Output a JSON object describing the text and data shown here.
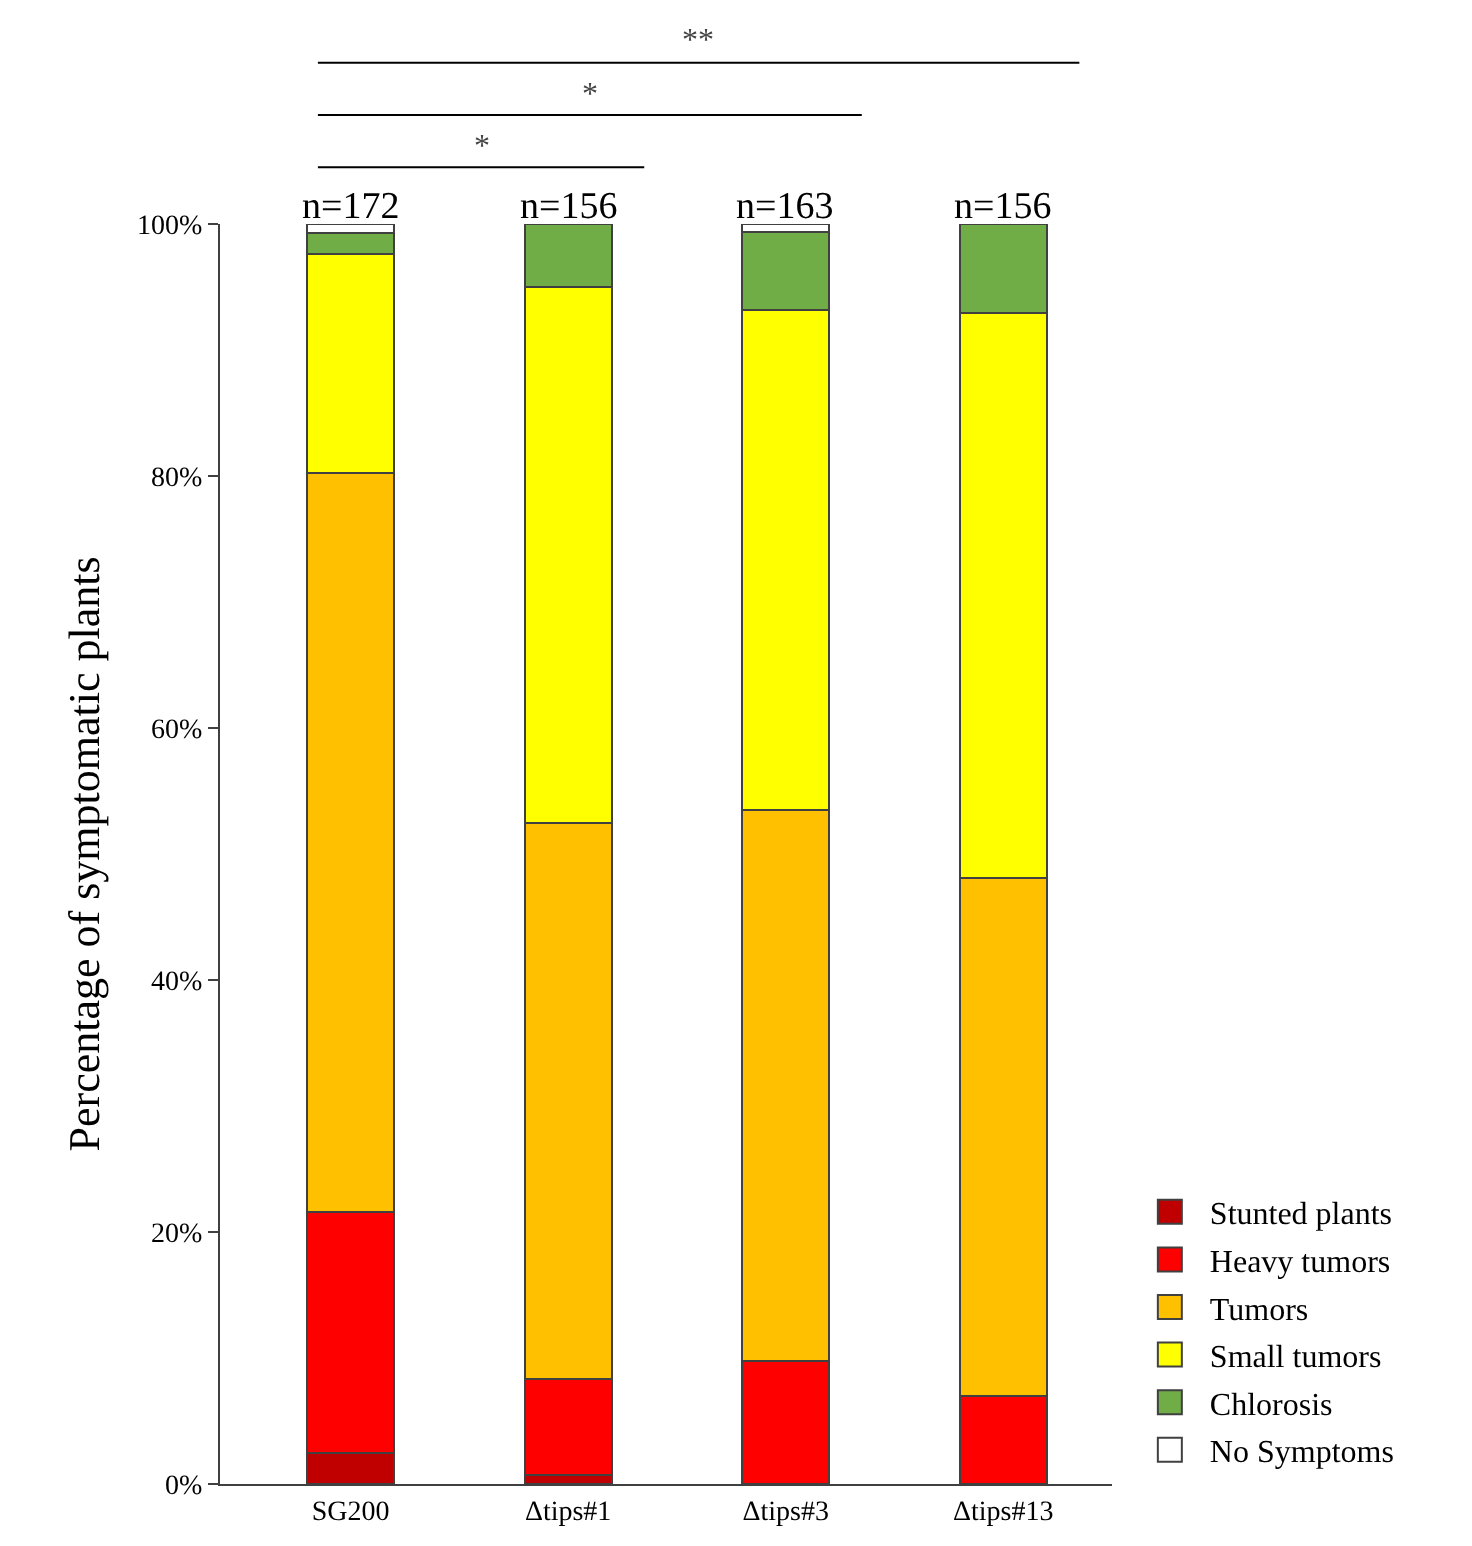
{
  "chart_data": {
    "type": "bar",
    "stacked": true,
    "ylabel": "Percentage of symptomatic plants",
    "categories": [
      "SG200",
      "Δtips#1",
      "Δtips#3",
      "Δtips#13"
    ],
    "series": [
      {
        "name": "Stunted plants",
        "color": "#c00000",
        "values": [
          2.5,
          0.7,
          0,
          0
        ]
      },
      {
        "name": "Heavy tumors",
        "color": "#ff0000",
        "values": [
          19.1,
          7.6,
          9.8,
          7.0
        ]
      },
      {
        "name": "Tumors",
        "color": "#ffc000",
        "values": [
          58.6,
          44.2,
          43.7,
          41.1
        ]
      },
      {
        "name": "Small tumors",
        "color": "#ffff00",
        "values": [
          17.4,
          42.5,
          39.7,
          44.8
        ]
      },
      {
        "name": "Chlorosis",
        "color": "#70ad47",
        "values": [
          1.7,
          5.0,
          6.2,
          7.1
        ]
      },
      {
        "name": "No Symptoms",
        "color": "#ffffff",
        "values": [
          0.7,
          0,
          0.6,
          0
        ]
      }
    ],
    "ylim": [
      0,
      100
    ],
    "yticks": [
      {
        "value": 0,
        "label": "0%"
      },
      {
        "value": 20,
        "label": "20%"
      },
      {
        "value": 40,
        "label": "40%"
      },
      {
        "value": 60,
        "label": "60%"
      },
      {
        "value": 80,
        "label": "80%"
      },
      {
        "value": 100,
        "label": "100%"
      }
    ],
    "grid": false,
    "legend": "right",
    "annotations": [
      {
        "text": "n=172",
        "x": "SG200",
        "y": 100
      },
      {
        "text": "n=156",
        "x": "Δtips#1",
        "y": 100
      },
      {
        "text": "n=163",
        "x": "Δtips#3",
        "y": 100
      },
      {
        "text": "n=156",
        "x": "Δtips#13",
        "y": 100
      },
      "*",
      "*",
      "**"
    ]
  }
}
